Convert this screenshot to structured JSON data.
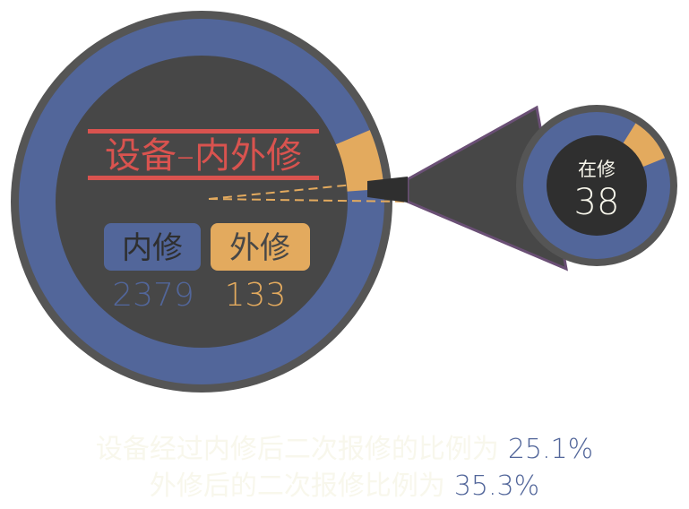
{
  "colors": {
    "inner_repair": "#52669A",
    "outer_repair": "#E3AA5E",
    "title_line": "#D9534F",
    "dark_disc": "#474747",
    "ring_border": "#555555",
    "small_center": "#2F2F2F",
    "caption_text": "#F8F7EC",
    "caption_value": "#52669A",
    "connector": "#6A4F75"
  },
  "main_chart": {
    "title": "设备–内外修",
    "legend": {
      "inner_label": "内修",
      "outer_label": "外修"
    },
    "inner_value": "2379",
    "outer_value": "133"
  },
  "detail_chart": {
    "label": "在修",
    "value": "38"
  },
  "captions": {
    "line1_text": "设备经过内修后二次报修的比例为",
    "line1_value": "25.1%",
    "line2_text": "外修后的二次报修比例为",
    "line2_value": "35.3%"
  },
  "chart_data": [
    {
      "type": "pie",
      "title": "设备–内外修",
      "categories": [
        "内修",
        "外修"
      ],
      "values": [
        2379,
        133
      ]
    },
    {
      "type": "pie",
      "title": "在修",
      "total": 38,
      "slices": [
        {
          "name": "",
          "fraction": 0.9
        },
        {
          "name": "",
          "fraction": 0.1
        }
      ]
    }
  ]
}
